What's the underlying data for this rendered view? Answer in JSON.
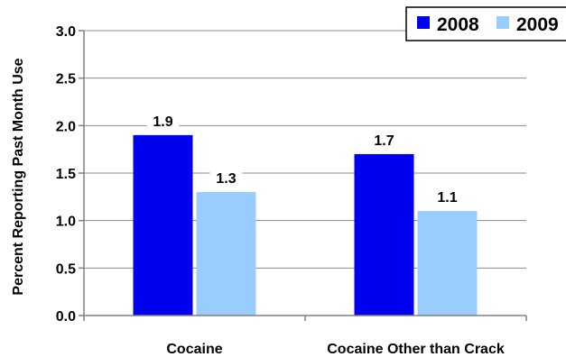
{
  "chart_data": {
    "type": "bar",
    "categories": [
      "Cocaine",
      "Cocaine Other than Crack"
    ],
    "series": [
      {
        "name": "2008",
        "values": [
          1.9,
          1.7
        ],
        "color": "#0000ee"
      },
      {
        "name": "2009",
        "values": [
          1.3,
          1.1
        ],
        "color": "#99ccff"
      }
    ],
    "data_labels": [
      [
        "1.9",
        "1.7"
      ],
      [
        "1.3",
        "1.1"
      ]
    ],
    "ylabel": "Percent Reporting Past Month Use",
    "xlabel": "",
    "ylim": [
      0,
      3.0
    ],
    "yticks": [
      "0.0",
      "0.5",
      "1.0",
      "1.5",
      "2.0",
      "2.5",
      "3.0"
    ],
    "grid": true,
    "legend_position": "top-right"
  }
}
